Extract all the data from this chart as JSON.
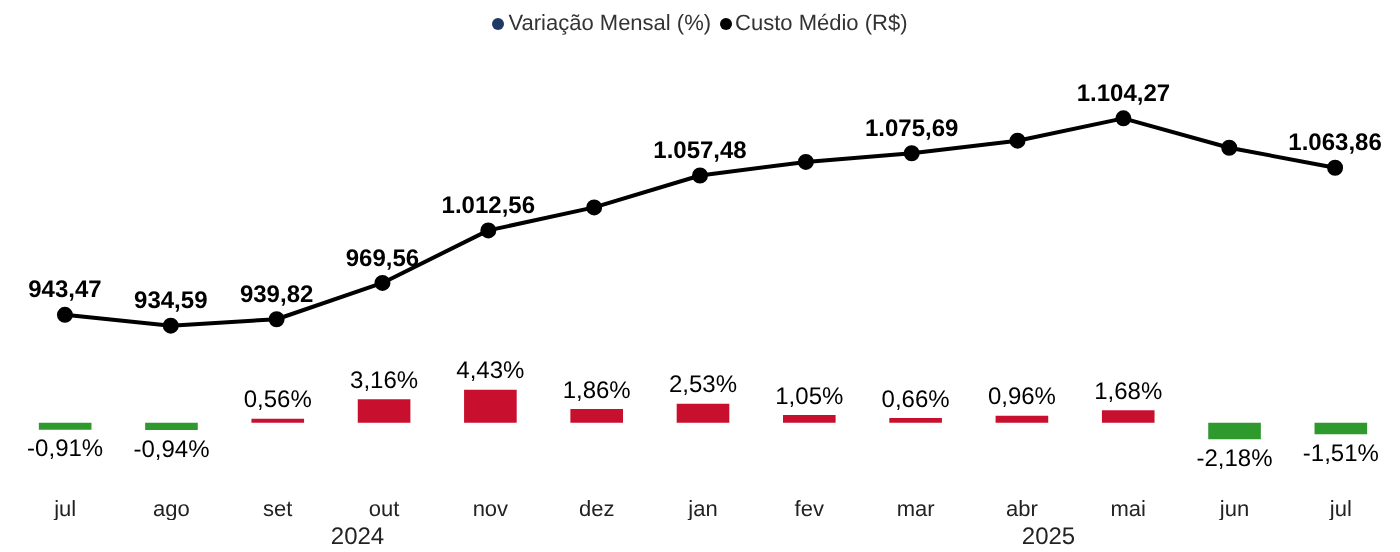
{
  "chart_data": [
    {
      "type": "line",
      "categories": [
        null,
        null,
        null,
        null,
        null,
        null,
        null,
        null,
        null,
        null,
        null,
        null,
        null
      ],
      "legend": "top",
      "grid": false,
      "tick_labels": false,
      "marker": "circle",
      "series": [
        {
          "name": "Custo Médio (R$)",
          "color": "#000000",
          "values": [
            943.47,
            934.59,
            939.82,
            969.56,
            1012.56,
            1031.4,
            1057.48,
            1068.6,
            1075.69,
            1086.0,
            1104.27,
            1080.2,
            1063.86
          ],
          "value_labels": [
            "943,47",
            "934,59",
            "939,82",
            "969,56",
            "1.012,56",
            null,
            "1.057,48",
            null,
            "1.075,69",
            null,
            "1.104,27",
            null,
            "1.063,86"
          ]
        }
      ]
    },
    {
      "type": "bar",
      "categories": [
        "jul",
        "ago",
        "set",
        "out",
        "nov",
        "dez",
        "jan",
        "fev",
        "mar",
        "abr",
        "mai",
        "jun",
        "jul"
      ],
      "legend": "top",
      "grid": false,
      "tick_labels": "x",
      "annotations": [
        "2024",
        "2025"
      ],
      "series": [
        {
          "name": "Variação Mensal (%)",
          "color": "#1f3864",
          "colors": [
            "#2e9a2e",
            "#2e9a2e",
            "#c8102e",
            "#c8102e",
            "#c8102e",
            "#c8102e",
            "#c8102e",
            "#c8102e",
            "#c8102e",
            "#c8102e",
            "#c8102e",
            "#2e9a2e",
            "#2e9a2e"
          ],
          "values": [
            -0.91,
            -0.94,
            0.56,
            3.16,
            4.43,
            1.86,
            2.53,
            1.05,
            0.66,
            0.96,
            1.68,
            -2.18,
            -1.51
          ],
          "value_labels": [
            "-0,91%",
            "-0,94%",
            "0,56%",
            "3,16%",
            "4,43%",
            "1,86%",
            "2,53%",
            "1,05%",
            "0,66%",
            "0,96%",
            "1,68%",
            "-2,18%",
            "-1,51%"
          ]
        }
      ]
    }
  ]
}
